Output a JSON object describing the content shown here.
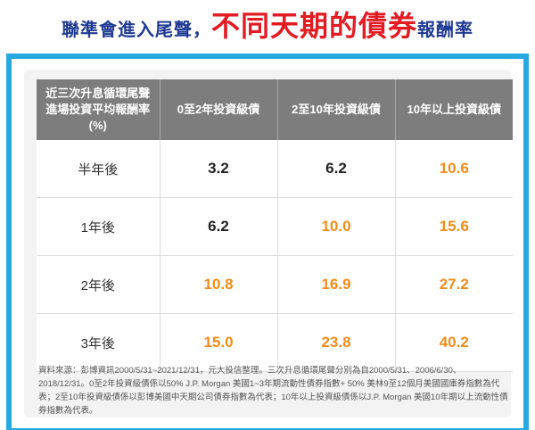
{
  "title": {
    "part1": "聯準會進入尾聲，",
    "part2": "不同天期的債券",
    "part3": "報酬率"
  },
  "table": {
    "header": {
      "line1": "近三次升息循環尾聲",
      "line2": "進場投資平均報酬率(%)",
      "col1": "0至2年投資級債",
      "col2": "2至10年投資級債",
      "col3": "10年以上投資級債"
    },
    "rows": [
      {
        "label": "半年後",
        "v1": "3.2",
        "v2": "6.2",
        "v3": "10.6"
      },
      {
        "label": "1年後",
        "v1": "6.2",
        "v2": "10.0",
        "v3": "15.6"
      },
      {
        "label": "2年後",
        "v1": "10.8",
        "v2": "16.9",
        "v3": "27.2"
      },
      {
        "label": "3年後",
        "v1": "15.0",
        "v2": "23.8",
        "v3": "40.2"
      }
    ]
  },
  "source": "資料來源：彭博資訊2000/5/31~2021/12/31，元大投信整理。三次升息循環尾聲分別為自2000/5/31、2006/6/30、2018/12/31。0至2年投資級債係以50% J.P. Morgan 美國1~3年期流動性債券指數+ 50% 美林9至12個月美國國庫券指數為代表；2至10年投資級債係以彭博美國中天期公司債券指數為代表；10年以上投資級債係以J.P. Morgan 美國10年期以上流動性債券指數為代表。",
  "colors": {
    "title_blue": "#1f3a93",
    "title_red": "#e31b23",
    "frame_blue": "#25a9e0",
    "header_gray": "#7d7d7d",
    "value_orange": "#f28c18",
    "value_dark": "#222222"
  }
}
